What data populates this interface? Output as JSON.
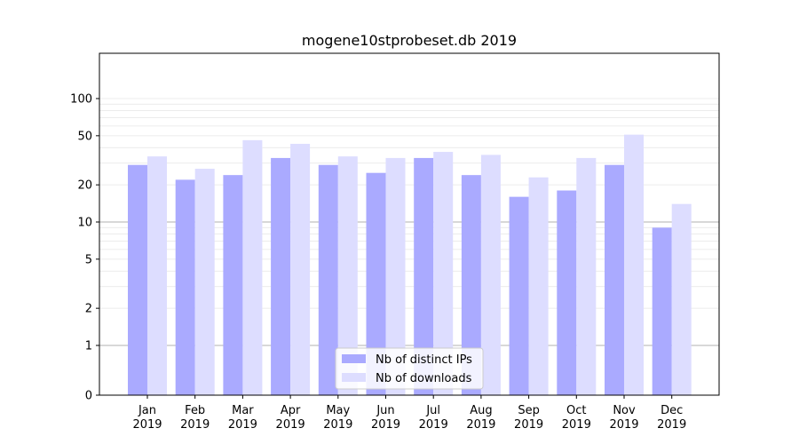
{
  "chart_data": {
    "type": "bar",
    "title": "mogene10stprobeset.db 2019",
    "xlabel": "",
    "ylabel": "",
    "yscale": "symlog",
    "ylim": [
      0,
      120
    ],
    "yticks": [
      0,
      1,
      2,
      5,
      10,
      20,
      50,
      100
    ],
    "grid": true,
    "legend_position": "bottom-center",
    "categories": [
      "Jan\n2019",
      "Feb\n2019",
      "Mar\n2019",
      "Apr\n2019",
      "May\n2019",
      "Jun\n2019",
      "Jul\n2019",
      "Aug\n2019",
      "Sep\n2019",
      "Oct\n2019",
      "Nov\n2019",
      "Dec\n2019"
    ],
    "series": [
      {
        "name": "Nb of distinct IPs",
        "color": "#aaaaff",
        "values": [
          29,
          22,
          24,
          33,
          29,
          25,
          33,
          24,
          16,
          18,
          29,
          9
        ]
      },
      {
        "name": "Nb of downloads",
        "color": "#ddddff",
        "values": [
          34,
          27,
          46,
          43,
          34,
          33,
          37,
          35,
          23,
          33,
          51,
          14
        ]
      }
    ]
  }
}
